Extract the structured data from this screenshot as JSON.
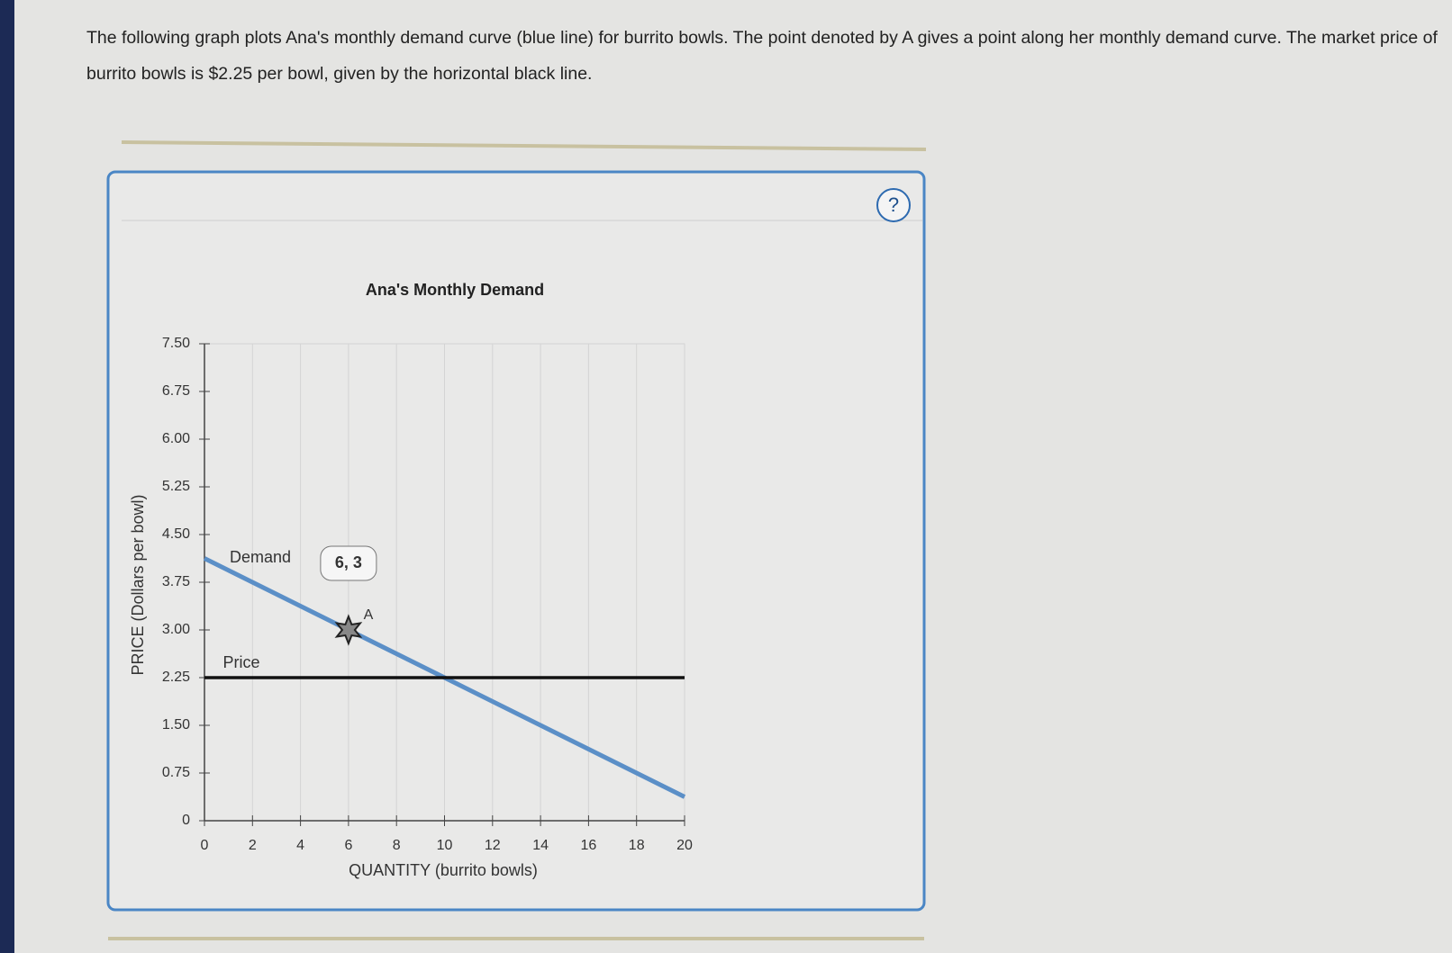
{
  "question": "The following graph plots Ana's monthly demand curve (blue line) for burrito bowls. The point denoted by A gives a point along her monthly demand curve. The market price of burrito bowls is $2.25 per bowl, given by the horizontal black line.",
  "help_icon": "?",
  "chart_data": {
    "type": "line",
    "title": "Ana's Monthly Demand",
    "x_label": "QUANTITY (burrito bowls)",
    "y_label": "PRICE (Dollars per bowl)",
    "xlim": [
      0,
      20
    ],
    "ylim": [
      0,
      7.5
    ],
    "xticks": [
      0,
      2,
      4,
      6,
      8,
      10,
      12,
      14,
      16,
      18,
      20
    ],
    "yticks": [
      0,
      {
        "value": 0.75,
        "label": "0.75"
      },
      {
        "value": 1.5,
        "label": "1.50"
      },
      {
        "value": 2.25,
        "label": "2.25"
      },
      {
        "value": 3,
        "label": "3.00"
      },
      {
        "value": 3.75,
        "label": "3.75"
      },
      {
        "value": 4.5,
        "label": "4.50"
      },
      {
        "value": 5.25,
        "label": "5.25"
      },
      {
        "value": 6,
        "label": "6.00"
      },
      {
        "value": 6.75,
        "label": "6.75"
      },
      {
        "value": 7.5,
        "label": "7.50"
      }
    ],
    "grid": true,
    "series": [
      {
        "name": "Demand",
        "color": "#5b8fc7",
        "x": [
          0,
          20
        ],
        "values": [
          4.125,
          0.375
        ]
      },
      {
        "name": "Price",
        "color": "#111111",
        "x": [
          0,
          20
        ],
        "values": [
          2.25,
          2.25
        ]
      }
    ],
    "points": [
      {
        "name": "A",
        "x": 6,
        "y": 3,
        "label": "6, 3"
      }
    ]
  }
}
